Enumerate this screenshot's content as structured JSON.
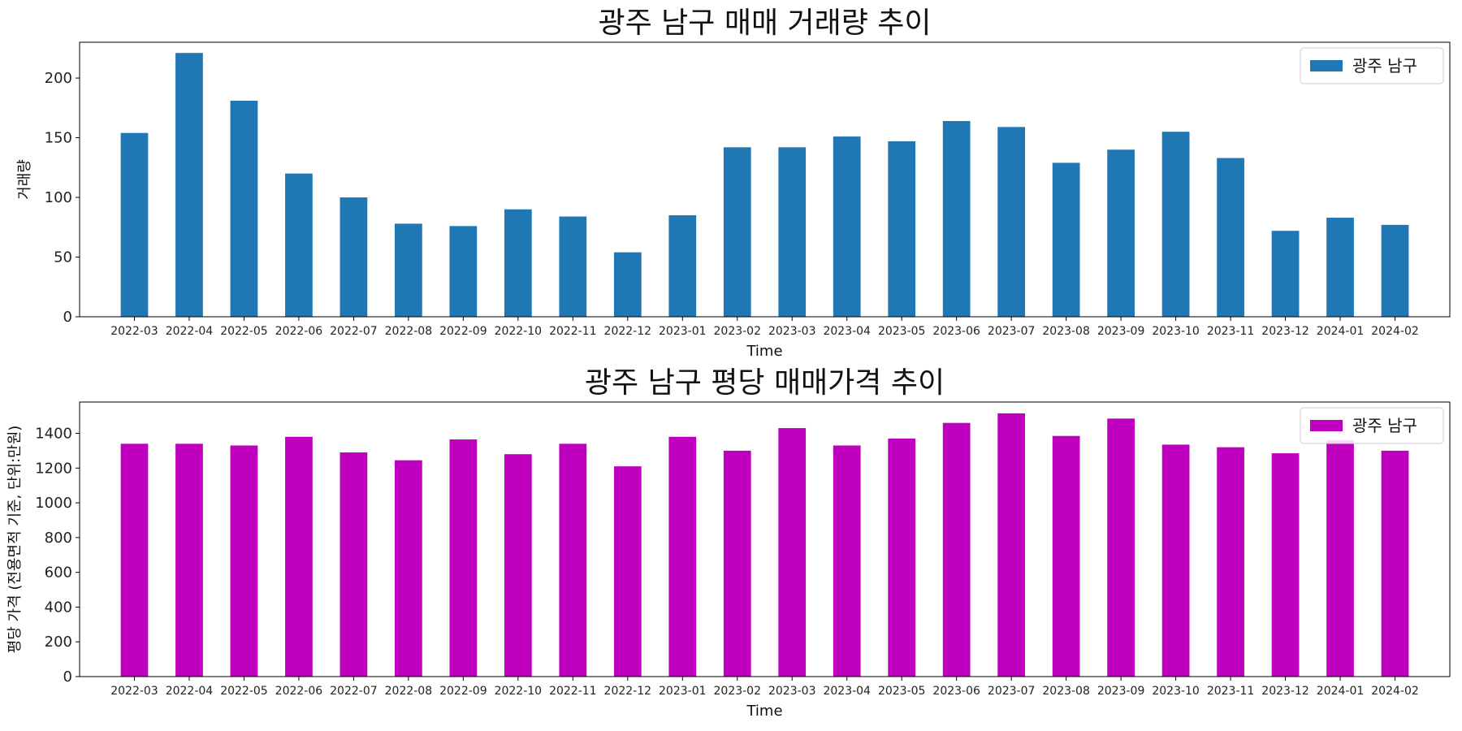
{
  "chart_data": [
    {
      "type": "bar",
      "title": "광주 남구 매매 거래량 추이",
      "xlabel": "Time",
      "ylabel": "거래량",
      "ylim": [
        0,
        230
      ],
      "yticks": [
        0,
        50,
        100,
        150,
        200
      ],
      "grid": false,
      "legend_position": "top-right",
      "categories": [
        "2022-03",
        "2022-04",
        "2022-05",
        "2022-06",
        "2022-07",
        "2022-08",
        "2022-09",
        "2022-10",
        "2022-11",
        "2022-12",
        "2023-01",
        "2023-02",
        "2023-03",
        "2023-04",
        "2023-05",
        "2023-06",
        "2023-07",
        "2023-08",
        "2023-09",
        "2023-10",
        "2023-11",
        "2023-12",
        "2024-01",
        "2024-02"
      ],
      "series": [
        {
          "name": "광주 남구",
          "color": "#1f77b4",
          "values": [
            154,
            221,
            181,
            120,
            100,
            78,
            76,
            90,
            84,
            54,
            85,
            142,
            142,
            151,
            147,
            164,
            159,
            129,
            140,
            155,
            133,
            72,
            83,
            77
          ]
        }
      ]
    },
    {
      "type": "bar",
      "title": "광주 남구 평당 매매가격 추이",
      "xlabel": "Time",
      "ylabel": "평당 가격 (전용면적 기준, 단위:만원)",
      "ylim": [
        0,
        1580
      ],
      "yticks": [
        0,
        200,
        400,
        600,
        800,
        1000,
        1200,
        1400
      ],
      "grid": false,
      "legend_position": "top-right",
      "categories": [
        "2022-03",
        "2022-04",
        "2022-05",
        "2022-06",
        "2022-07",
        "2022-08",
        "2022-09",
        "2022-10",
        "2022-11",
        "2022-12",
        "2023-01",
        "2023-02",
        "2023-03",
        "2023-04",
        "2023-05",
        "2023-06",
        "2023-07",
        "2023-08",
        "2023-09",
        "2023-10",
        "2023-11",
        "2023-12",
        "2024-01",
        "2024-02"
      ],
      "series": [
        {
          "name": "광주 남구",
          "color": "#bf00bf",
          "values": [
            1340,
            1340,
            1330,
            1380,
            1290,
            1245,
            1365,
            1280,
            1340,
            1210,
            1380,
            1300,
            1430,
            1330,
            1370,
            1460,
            1515,
            1385,
            1485,
            1335,
            1320,
            1285,
            1360,
            1300
          ]
        }
      ]
    }
  ]
}
